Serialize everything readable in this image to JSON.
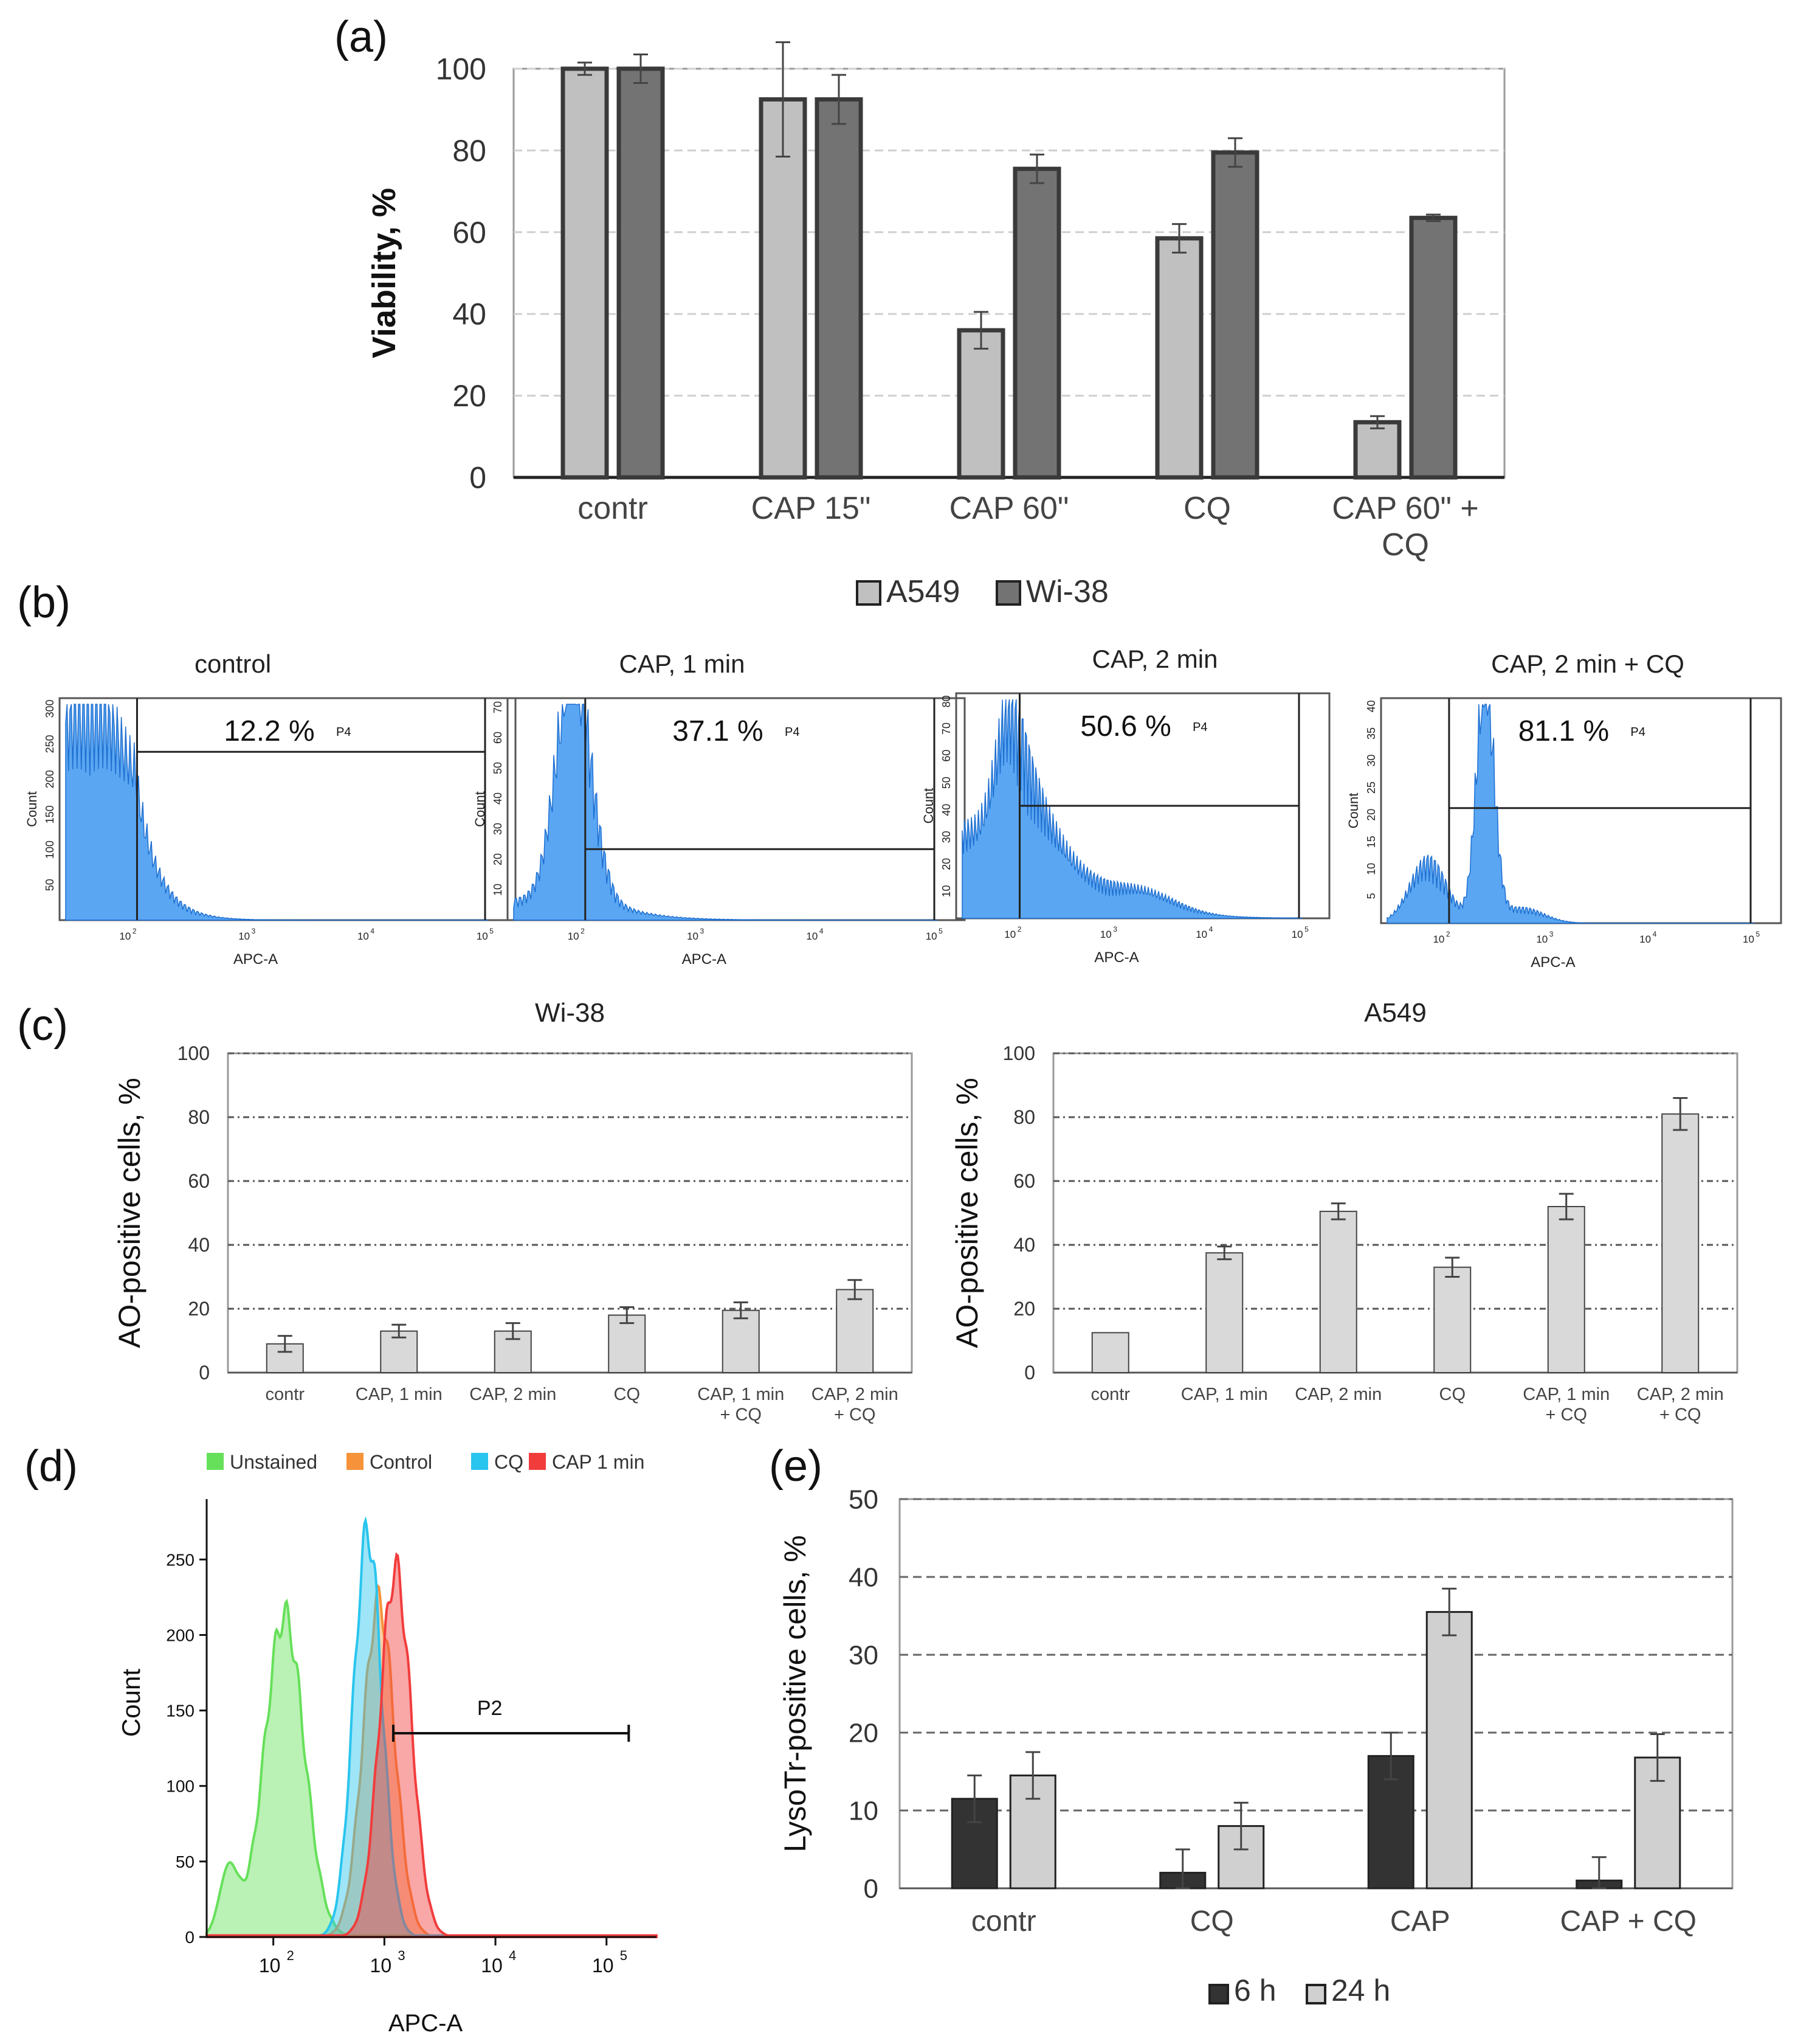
{
  "panel_labels": {
    "a": "(a)",
    "b": "(b)",
    "c": "(c)",
    "d": "(d)",
    "e": "(e)"
  },
  "chart_data": [
    {
      "id": "a",
      "type": "bar",
      "title": "",
      "xlabel": "",
      "ylabel": "Viability, %",
      "ylim": [
        0,
        100
      ],
      "yticks": [
        0,
        20,
        40,
        60,
        80,
        100
      ],
      "categories": [
        [
          "contr"
        ],
        [
          "CAP 15\""
        ],
        [
          "CAP 60\""
        ],
        [
          "CQ"
        ],
        [
          "CAP 60\" +",
          "CQ"
        ]
      ],
      "series": [
        {
          "name": "A549",
          "color": "#c0c0c0",
          "values": [
            100,
            92.5,
            36,
            58.5,
            13.5
          ],
          "errors": [
            1.5,
            14,
            4.5,
            3.5,
            1.5
          ]
        },
        {
          "name": "Wi-38",
          "color": "#737373",
          "values": [
            100,
            92.5,
            75.5,
            79.5,
            63.5
          ],
          "errors": [
            3.5,
            6,
            3.5,
            3.5,
            0.8
          ]
        }
      ],
      "grid": true,
      "legend": "bottom"
    },
    {
      "id": "b",
      "type": "histogram",
      "xlabel": "APC-A",
      "ylabel": "Count",
      "gate": "P4",
      "panels": [
        {
          "title": "control",
          "percent": "12.2 %",
          "yticks": [
            "50",
            "100",
            "150",
            "200",
            "250",
            "300"
          ],
          "ymax": 310,
          "gate_start": 2.1,
          "gate_y": 235
        },
        {
          "title": "CAP, 1 min",
          "percent": "37.1 %",
          "yticks": [
            "10",
            "20",
            "30",
            "40",
            "50",
            "60",
            "70"
          ],
          "ymax": 75,
          "gate_start": 2.1,
          "gate_y": 24
        },
        {
          "title": "CAP, 2 min",
          "percent": "50.6 %",
          "yticks": [
            "10",
            "20",
            "30",
            "40",
            "50",
            "60",
            "70",
            "80"
          ],
          "ymax": 82,
          "gate_start": 2.1,
          "gate_y": 41
        },
        {
          "title": "CAP, 2 min + CQ",
          "percent": "81.1 %",
          "yticks": [
            "5",
            "10",
            "15",
            "20",
            "25",
            "30",
            "35",
            "40"
          ],
          "ymax": 43,
          "gate_start": 2.1,
          "gate_y": 22
        }
      ],
      "xticks": [
        "10",
        "10",
        "10",
        "10"
      ],
      "xtick_exponents": [
        "2",
        "3",
        "4",
        "5"
      ]
    },
    {
      "id": "c1",
      "type": "bar",
      "title": "Wi-38",
      "ylabel": "AO-positive cells, %",
      "ylim": [
        0,
        100
      ],
      "yticks": [
        0,
        20,
        40,
        60,
        80,
        100
      ],
      "categories": [
        [
          "contr"
        ],
        [
          "CAP, 1 min"
        ],
        [
          "CAP, 2 min"
        ],
        [
          "CQ"
        ],
        [
          "CAP, 1 min",
          "+ CQ"
        ],
        [
          "CAP, 2 min",
          "+ CQ"
        ]
      ],
      "series": [
        {
          "name": "Wi-38",
          "color": "#d9d9d9",
          "values": [
            9,
            13,
            13,
            18,
            19.5,
            26
          ],
          "errors": [
            2.5,
            2,
            2.5,
            2.5,
            2.5,
            3
          ]
        }
      ],
      "grid": true
    },
    {
      "id": "c2",
      "type": "bar",
      "title": "A549",
      "ylabel": "AO-positive cells, %",
      "ylim": [
        0,
        100
      ],
      "yticks": [
        0,
        20,
        40,
        60,
        80,
        100
      ],
      "categories": [
        [
          "contr"
        ],
        [
          "CAP, 1 min"
        ],
        [
          "CAP, 2 min"
        ],
        [
          "CQ"
        ],
        [
          "CAP, 1 min",
          "+ CQ"
        ],
        [
          "CAP, 2 min",
          "+ CQ"
        ]
      ],
      "series": [
        {
          "name": "A549",
          "color": "#d9d9d9",
          "values": [
            12.5,
            37.5,
            50.5,
            33,
            52,
            81
          ],
          "errors": [
            0,
            2,
            2.5,
            3,
            4,
            5
          ]
        }
      ],
      "grid": true
    },
    {
      "id": "d",
      "type": "histogram-overlay",
      "xlabel": "APC-A",
      "ylabel": "Count",
      "yticks": [
        0,
        50,
        100,
        150,
        200,
        250
      ],
      "xticks": [
        "10",
        "10",
        "10",
        "10"
      ],
      "xtick_exponents": [
        "2",
        "3",
        "4",
        "5"
      ],
      "gate": "P2",
      "series": [
        {
          "name": "Unstained",
          "color": "#66e05a",
          "peak_log10": 2.1,
          "peak": 213
        },
        {
          "name": "Control",
          "color": "#f5923a",
          "peak_log10": 2.95,
          "peak": 222
        },
        {
          "name": "CQ",
          "color": "#29c5ee",
          "peak_log10": 2.85,
          "peak": 268
        },
        {
          "name": "CAP 1 min",
          "color": "#f23c3c",
          "peak_log10": 3.1,
          "peak": 243
        }
      ],
      "legend": "top"
    },
    {
      "id": "e",
      "type": "bar",
      "title": "",
      "ylabel": "LysoTr-positive cells, %",
      "ylim": [
        0,
        50
      ],
      "yticks": [
        0,
        10,
        20,
        30,
        40,
        50
      ],
      "categories": [
        [
          "contr"
        ],
        [
          "CQ"
        ],
        [
          "CAP"
        ],
        [
          "CAP + CQ"
        ]
      ],
      "series": [
        {
          "name": "6 h",
          "color": "#333333",
          "values": [
            11.5,
            2,
            17,
            1
          ],
          "errors": [
            3,
            3,
            3,
            3
          ]
        },
        {
          "name": "24 h",
          "color": "#d0d0d0",
          "values": [
            14.5,
            8,
            35.5,
            16.8
          ],
          "errors": [
            3,
            3,
            3,
            3
          ]
        }
      ],
      "grid": true,
      "legend": "bottom"
    }
  ]
}
